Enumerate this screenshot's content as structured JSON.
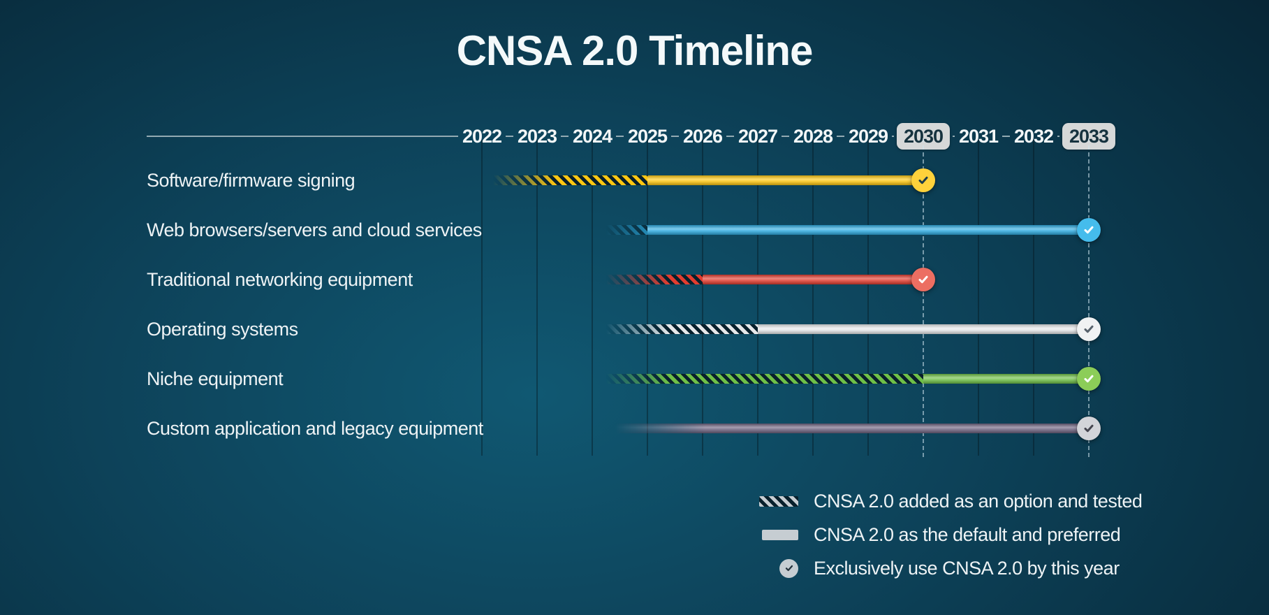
{
  "title": "CNSA 2.0 Timeline",
  "colors": {
    "background_center": "#105872",
    "background_edge": "#072130",
    "axis_line": "#93aab2",
    "gridline": "rgba(4,19,27,0.4)",
    "milestone_line": "rgba(210,230,238,0.55)",
    "year_text": "#f2f6f7",
    "year_badge_bg": "#d6d8d8",
    "year_badge_text": "#16323e",
    "label_text": "#eef3f5",
    "hatch_gap": "rgba(8,28,39,0.92)",
    "legend_swatch": "#c6cdd2"
  },
  "chart_data": {
    "type": "timeline",
    "title": "CNSA 2.0 Timeline",
    "x_axis": {
      "years": [
        "2022",
        "2023",
        "2024",
        "2025",
        "2026",
        "2027",
        "2028",
        "2029",
        "2030",
        "2031",
        "2032",
        "2033"
      ],
      "highlighted_years": [
        "2030",
        "2033"
      ]
    },
    "rows": [
      {
        "label": "Software/firmware signing",
        "color": "#fec712",
        "circle_color": "#ffd23b",
        "check_color": "#1d3c4a",
        "option_tested_start": 2022.2,
        "default_preferred_start": 2025,
        "exclusively_use_by": 2030
      },
      {
        "label": "Web browsers/servers and cloud services",
        "color": "#2fabe1",
        "circle_color": "#45bcec",
        "check_color": "#ffffff",
        "option_tested_start": 2024.25,
        "default_preferred_start": 2025,
        "exclusively_use_by": 2033
      },
      {
        "label": "Traditional networking equipment",
        "color": "#e23d30",
        "circle_color": "#ec6e62",
        "check_color": "#ffffff",
        "option_tested_start": 2024.25,
        "default_preferred_start": 2026,
        "exclusively_use_by": 2030
      },
      {
        "label": "Operating systems",
        "color": "#e6e8ea",
        "circle_color": "#f0f2f3",
        "check_color": "#57626c",
        "option_tested_start": 2024.25,
        "default_preferred_start": 2027,
        "exclusively_use_by": 2033
      },
      {
        "label": "Niche equipment",
        "color": "#6fc047",
        "circle_color": "#8ccd58",
        "check_color": "#ffffff",
        "option_tested_start": 2024.25,
        "default_preferred_start": 2030,
        "exclusively_use_by": 2033
      },
      {
        "label": "Custom application and legacy equipment",
        "color": "#6e6380",
        "circle_color": "#d3d4d9",
        "check_color": "#45454f",
        "option_tested_start": null,
        "default_preferred_start": 2024.4,
        "exclusively_use_by": 2033
      }
    ],
    "legend": [
      {
        "type": "hatched-swatch",
        "label": "CNSA 2.0 added as an option and tested"
      },
      {
        "type": "solid-swatch",
        "label": "CNSA 2.0 as the default and preferred"
      },
      {
        "type": "check-circle",
        "label": "Exclusively use CNSA 2.0 by this year"
      }
    ]
  }
}
